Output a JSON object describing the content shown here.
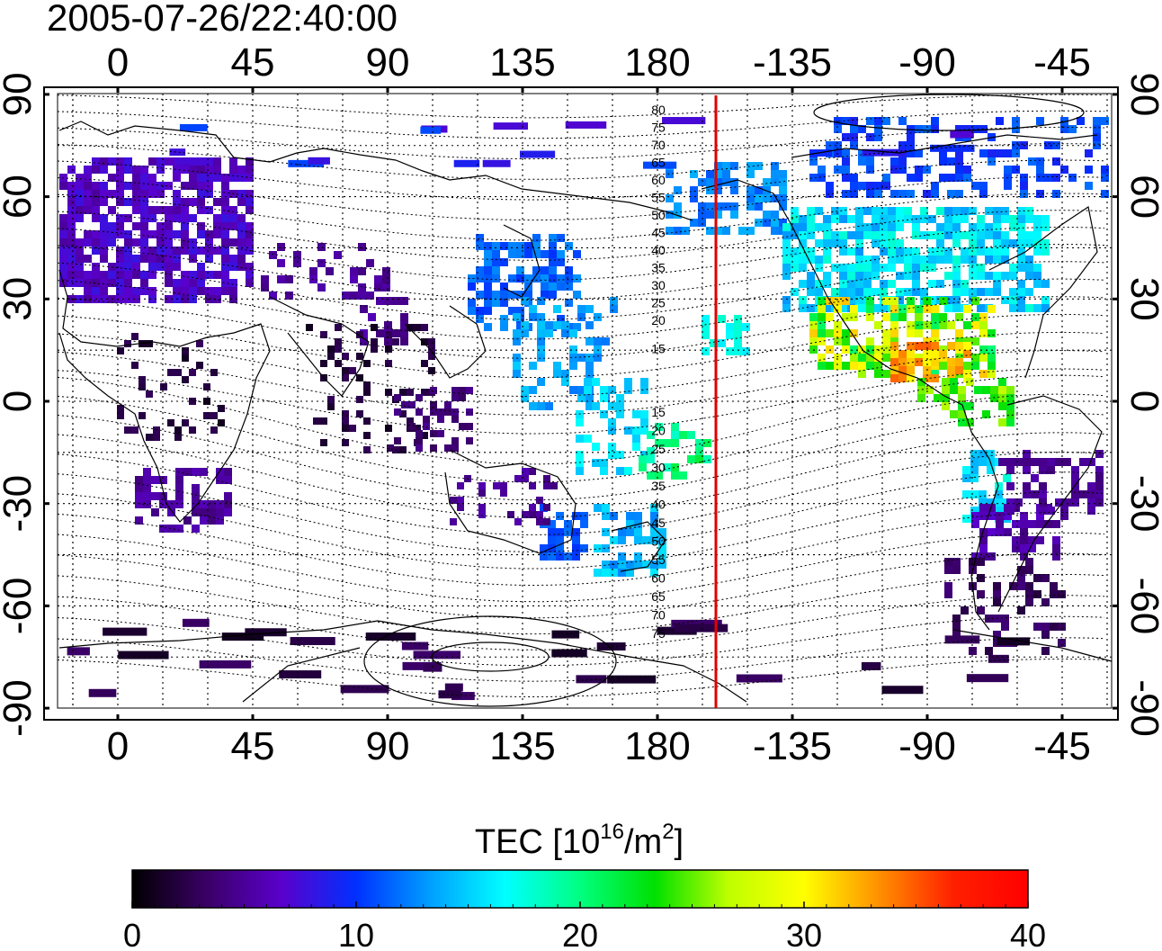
{
  "title": "2005-07-26/22:40:00",
  "map": {
    "top_lon_ticks": [
      "0",
      "45",
      "90",
      "135",
      "180",
      "-135",
      "-90",
      "-45"
    ],
    "bottom_lon_ticks": [
      "0",
      "45",
      "90",
      "135",
      "180",
      "-135",
      "-90",
      "-45"
    ],
    "left_lat_ticks": [
      "90",
      "60",
      "30",
      "0",
      "-30",
      "-60",
      "-90"
    ],
    "right_lat_ticks": [
      "90",
      "60",
      "30",
      "0",
      "-30",
      "-60",
      "-90"
    ],
    "north_contour_labels": [
      "80",
      "75",
      "70",
      "65",
      "60",
      "55",
      "50",
      "45",
      "40",
      "35",
      "30",
      "25",
      "20",
      "15"
    ],
    "south_contour_labels": [
      "15",
      "20",
      "25",
      "30",
      "35",
      "40",
      "45",
      "50",
      "55",
      "60",
      "65",
      "70",
      "75"
    ],
    "terminator_color": "#e00000",
    "terminator_lon": -160
  },
  "colorbar": {
    "label_main": "TEC  [10",
    "label_sup1": "16",
    "label_mid": "/m",
    "label_sup2": "2",
    "label_end": "]",
    "ticks": [
      "0",
      "10",
      "20",
      "30",
      "40"
    ],
    "min": 0,
    "max": 40,
    "stops": [
      "#000000",
      "#3a0066",
      "#5a00cc",
      "#0030ff",
      "#00a0ff",
      "#00ffff",
      "#00ff80",
      "#00e000",
      "#c0ff00",
      "#ffff00",
      "#ff9000",
      "#ff2000",
      "#ff0000"
    ]
  }
}
